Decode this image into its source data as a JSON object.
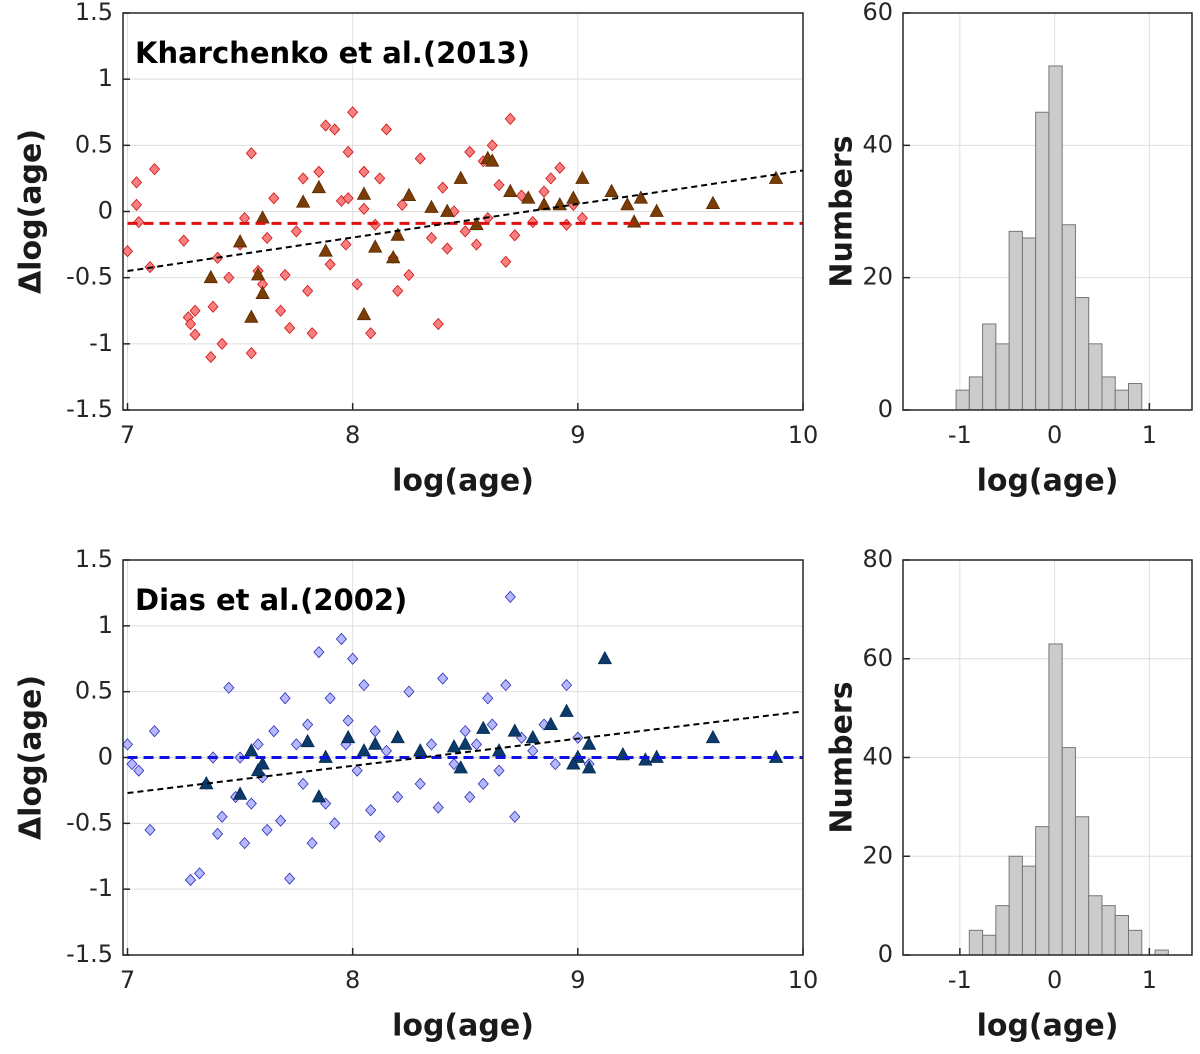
{
  "chart_data": [
    {
      "type": "scatter",
      "annotation": "Kharchenko et al.(2013)",
      "xlabel": "log(age)",
      "ylabel": "Δlog(age)",
      "xlim": [
        6.98,
        10
      ],
      "ylim": [
        -1.5,
        1.5
      ],
      "xticks": [
        7,
        8,
        9,
        10
      ],
      "yticks": [
        -1.5,
        -1,
        -0.5,
        0,
        0.5,
        1,
        1.5
      ],
      "grid": true,
      "series": [
        {
          "marker": "diamond",
          "color": "#f77f7f",
          "edgecolor": "#d01010",
          "x": [
            7.0,
            7.04,
            7.04,
            7.05,
            7.1,
            7.12,
            7.25,
            7.27,
            7.28,
            7.3,
            7.3,
            7.37,
            7.38,
            7.4,
            7.42,
            7.45,
            7.5,
            7.52,
            7.55,
            7.55,
            7.58,
            7.6,
            7.62,
            7.65,
            7.68,
            7.7,
            7.72,
            7.75,
            7.78,
            7.8,
            7.82,
            7.85,
            7.88,
            7.9,
            7.92,
            7.95,
            7.97,
            7.98,
            8.0,
            8.02,
            8.05,
            8.08,
            8.1,
            8.12,
            8.15,
            8.18,
            8.2,
            8.22,
            8.25,
            8.3,
            8.35,
            8.38,
            8.42,
            8.45,
            8.5,
            8.52,
            8.55,
            8.58,
            8.6,
            8.62,
            8.65,
            8.7,
            8.72,
            8.75,
            8.8,
            8.85,
            8.88,
            8.92,
            8.95,
            8.98,
            9.02,
            8.68,
            8.4,
            7.98,
            8.05
          ],
          "values": [
            -0.3,
            0.22,
            0.05,
            -0.08,
            -0.42,
            0.32,
            -0.22,
            -0.8,
            -0.85,
            -0.93,
            -0.75,
            -1.1,
            -0.72,
            -0.35,
            -1.0,
            -0.5,
            -0.25,
            -0.05,
            0.44,
            -1.07,
            -0.45,
            -0.55,
            -0.2,
            0.1,
            -0.75,
            -0.48,
            -0.88,
            -0.15,
            0.25,
            -0.6,
            -0.92,
            0.3,
            0.65,
            -0.4,
            0.62,
            0.08,
            -0.25,
            0.45,
            0.75,
            -0.55,
            0.02,
            -0.92,
            -0.1,
            0.25,
            0.62,
            -0.35,
            -0.6,
            0.05,
            -0.48,
            0.4,
            -0.2,
            -0.85,
            -0.28,
            0.0,
            -0.15,
            0.45,
            -0.25,
            0.38,
            -0.05,
            0.5,
            0.2,
            0.7,
            -0.18,
            0.12,
            -0.08,
            0.15,
            0.25,
            0.33,
            -0.1,
            0.05,
            -0.05,
            -0.38,
            0.18,
            0.1,
            0.3
          ]
        },
        {
          "marker": "triangle",
          "color": "#7a3d05",
          "edgecolor": "#5a2a00",
          "x": [
            7.37,
            7.5,
            7.55,
            7.58,
            7.6,
            7.6,
            7.78,
            7.85,
            7.88,
            8.05,
            8.05,
            8.1,
            8.18,
            8.25,
            8.2,
            8.35,
            8.42,
            8.48,
            8.55,
            8.6,
            8.62,
            8.7,
            8.78,
            8.85,
            8.92,
            8.98,
            9.02,
            9.15,
            9.22,
            9.28,
            9.35,
            9.6,
            9.88,
            9.25
          ],
          "values": [
            -0.5,
            -0.23,
            -0.8,
            -0.48,
            -0.05,
            -0.62,
            0.07,
            0.18,
            -0.3,
            -0.78,
            0.13,
            -0.27,
            -0.35,
            0.12,
            -0.18,
            0.03,
            0.0,
            0.25,
            -0.1,
            0.4,
            0.38,
            0.15,
            0.1,
            0.05,
            0.05,
            0.1,
            0.25,
            0.15,
            0.05,
            0.1,
            0.0,
            0.06,
            0.25,
            -0.08
          ]
        },
        {
          "style": "dashed",
          "color": "#e01010",
          "x": [
            7,
            10
          ],
          "values": [
            -0.09,
            -0.09
          ]
        },
        {
          "style": "dashed",
          "color": "#000000",
          "x": [
            7,
            10
          ],
          "values": [
            -0.45,
            0.31
          ]
        }
      ]
    },
    {
      "type": "histogram",
      "xlabel": "log(age)",
      "ylabel": "Numbers",
      "color": "#cccccc",
      "xlim": [
        -1.6,
        1.45
      ],
      "ylim": [
        0,
        60
      ],
      "xticks": [
        -1,
        0,
        1
      ],
      "yticks": [
        0,
        20,
        40,
        60
      ],
      "grid": true,
      "bins": [
        -1.04,
        -0.9,
        -0.76,
        -0.62,
        -0.48,
        -0.34,
        -0.2,
        -0.06,
        0.08,
        0.22,
        0.36,
        0.5,
        0.64,
        0.78,
        0.92
      ],
      "counts": [
        3,
        5,
        13,
        10,
        27,
        26,
        45,
        52,
        28,
        17,
        10,
        5,
        3,
        4
      ]
    },
    {
      "type": "scatter",
      "annotation": "Dias et al.(2002)",
      "xlabel": "log(age)",
      "ylabel": "Δlog(age)",
      "xlim": [
        6.98,
        10
      ],
      "ylim": [
        -1.5,
        1.5
      ],
      "xticks": [
        7,
        8,
        9,
        10
      ],
      "yticks": [
        -1.5,
        -1,
        -0.5,
        0,
        0.5,
        1,
        1.5
      ],
      "grid": true,
      "series": [
        {
          "marker": "diamond",
          "color": "#b3b8ff",
          "edgecolor": "#2a2ab0",
          "x": [
            7.0,
            7.02,
            7.05,
            7.1,
            7.12,
            7.28,
            7.32,
            7.35,
            7.38,
            7.4,
            7.42,
            7.45,
            7.48,
            7.5,
            7.52,
            7.55,
            7.58,
            7.6,
            7.62,
            7.65,
            7.68,
            7.7,
            7.72,
            7.75,
            7.78,
            7.8,
            7.82,
            7.85,
            7.88,
            7.9,
            7.92,
            7.95,
            7.98,
            8.0,
            8.02,
            8.05,
            8.08,
            8.1,
            8.12,
            8.15,
            8.2,
            8.25,
            8.3,
            8.35,
            8.38,
            8.4,
            8.45,
            8.5,
            8.52,
            8.55,
            8.6,
            8.62,
            8.65,
            8.68,
            8.7,
            8.72,
            8.75,
            8.8,
            8.85,
            8.9,
            8.95,
            9.0,
            9.05,
            8.58,
            7.97
          ],
          "values": [
            0.1,
            -0.05,
            -0.1,
            -0.55,
            0.2,
            -0.93,
            -0.88,
            -0.2,
            0.0,
            -0.58,
            -0.45,
            0.53,
            -0.3,
            0.0,
            -0.65,
            -0.35,
            0.1,
            -0.15,
            -0.55,
            0.2,
            -0.48,
            0.45,
            -0.92,
            0.1,
            -0.2,
            0.25,
            -0.65,
            0.8,
            -0.35,
            0.45,
            -0.5,
            0.9,
            0.28,
            0.75,
            -0.1,
            0.55,
            -0.4,
            0.2,
            -0.6,
            0.05,
            -0.3,
            0.5,
            -0.2,
            0.1,
            -0.38,
            0.6,
            -0.05,
            0.2,
            -0.3,
            0.1,
            0.45,
            0.25,
            -0.1,
            0.55,
            1.22,
            -0.45,
            0.15,
            0.05,
            0.25,
            -0.05,
            0.55,
            0.15,
            -0.05,
            -0.2,
            0.1
          ]
        },
        {
          "marker": "triangle",
          "color": "#0b3a6b",
          "edgecolor": "#062a50",
          "x": [
            7.35,
            7.5,
            7.55,
            7.58,
            7.6,
            7.8,
            7.85,
            7.88,
            7.98,
            8.05,
            8.1,
            8.2,
            8.3,
            8.45,
            8.48,
            8.5,
            8.58,
            8.65,
            8.72,
            8.8,
            8.88,
            8.95,
            9.0,
            9.05,
            9.12,
            9.2,
            9.3,
            9.35,
            9.6,
            9.88,
            8.98,
            9.05
          ],
          "values": [
            -0.2,
            -0.28,
            0.05,
            -0.1,
            -0.05,
            0.12,
            -0.3,
            0.0,
            0.15,
            0.05,
            0.1,
            0.15,
            0.05,
            0.08,
            -0.08,
            0.1,
            0.22,
            0.05,
            0.2,
            0.15,
            0.25,
            0.35,
            0.0,
            0.1,
            0.75,
            0.02,
            -0.02,
            0.0,
            0.15,
            0.0,
            -0.05,
            -0.08
          ]
        },
        {
          "style": "dashed",
          "color": "#1010e0",
          "x": [
            7,
            10
          ],
          "values": [
            0,
            0
          ]
        },
        {
          "style": "dashed",
          "color": "#000000",
          "x": [
            7,
            10
          ],
          "values": [
            -0.27,
            0.35
          ]
        }
      ]
    },
    {
      "type": "histogram",
      "xlabel": "log(age)",
      "ylabel": "Numbers",
      "color": "#cccccc",
      "xlim": [
        -1.6,
        1.45
      ],
      "ylim": [
        0,
        80
      ],
      "xticks": [
        -1,
        0,
        1
      ],
      "yticks": [
        0,
        20,
        40,
        60,
        80
      ],
      "grid": true,
      "bins": [
        -0.9,
        -0.76,
        -0.62,
        -0.48,
        -0.34,
        -0.2,
        -0.06,
        0.08,
        0.22,
        0.36,
        0.5,
        0.64,
        0.78,
        0.92,
        1.06,
        1.2
      ],
      "counts": [
        5,
        4,
        10,
        20,
        18,
        26,
        63,
        42,
        28,
        12,
        10,
        8,
        5,
        0,
        1
      ]
    }
  ]
}
